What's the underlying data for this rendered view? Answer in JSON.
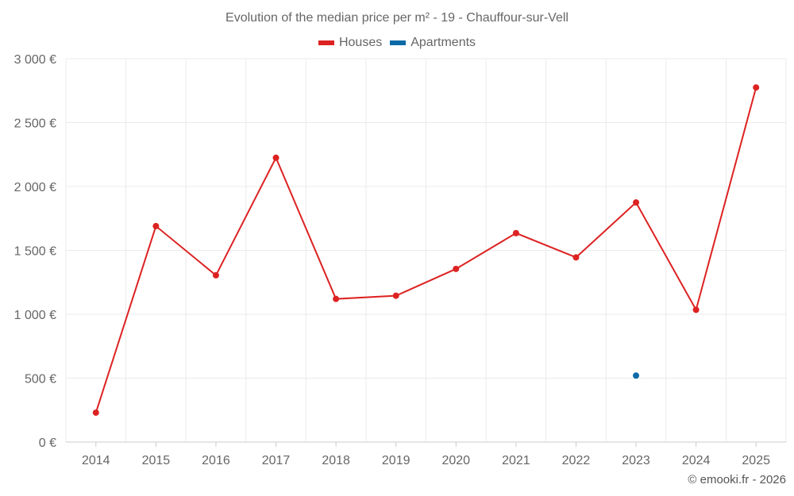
{
  "chart_data": {
    "type": "line",
    "title": "Evolution of the median price per m² - 19 - Chauffour-sur-Vell",
    "xlabel": "",
    "ylabel": "",
    "categories": [
      "2014",
      "2015",
      "2016",
      "2017",
      "2018",
      "2019",
      "2020",
      "2021",
      "2022",
      "2023",
      "2024",
      "2025"
    ],
    "ylim": [
      0,
      3000
    ],
    "yticks": [
      0,
      500,
      1000,
      1500,
      2000,
      2500,
      3000
    ],
    "ytick_labels": [
      "0 €",
      "500 €",
      "1 000 €",
      "1 500 €",
      "2 000 €",
      "2 500 €",
      "3 000 €"
    ],
    "grid": true,
    "legend_position": "top-center",
    "series": [
      {
        "name": "Houses",
        "color": "#dd2222",
        "values": [
          230,
          1690,
          1305,
          2225,
          1120,
          1145,
          1355,
          1635,
          1445,
          1875,
          1035,
          2775
        ]
      },
      {
        "name": "Apartments",
        "color": "#0a6aa8",
        "values": [
          null,
          null,
          null,
          null,
          null,
          null,
          null,
          null,
          null,
          520,
          null,
          null
        ]
      }
    ]
  },
  "footer": "© emooki.fr - 2026"
}
